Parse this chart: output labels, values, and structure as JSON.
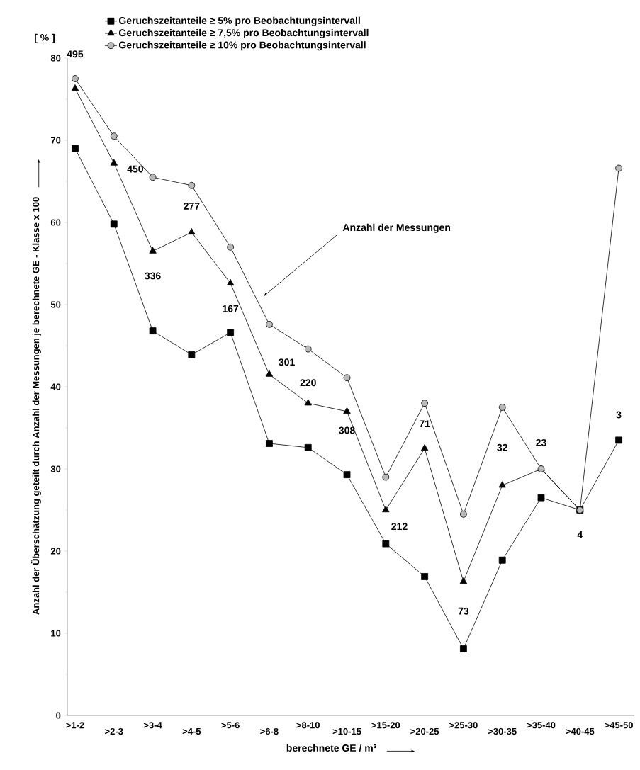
{
  "chart_data": {
    "type": "line",
    "xlabel": "berechnete GE / m³",
    "ylabel": "Anzahl der Überschätzung geteilt durch Anzahl der Messungen je berechnete GE - Klasse x 100",
    "categories": [
      ">1-2",
      ">2-3",
      ">3-4",
      ">4-5",
      ">5-6",
      ">6-8",
      ">8-10",
      ">10-15",
      ">15-20",
      ">20-25",
      ">25-30",
      ">30-35",
      ">35-40",
      ">40-45",
      ">45-50"
    ],
    "series": [
      {
        "name": "Geruchszeitanteile ≥ 5% pro Beobachtungsintervall",
        "color": "#000000",
        "marker": "square",
        "values": [
          69,
          59.8,
          46.8,
          43.9,
          46.6,
          33.1,
          32.6,
          29.3,
          20.9,
          16.9,
          8.1,
          18.9,
          26.5,
          25,
          33.5
        ]
      },
      {
        "name": "Geruchszeitanteile ≥ 7,5% pro Beobachtungsintervall",
        "color": "#000000",
        "marker": "triangle",
        "values": [
          76.3,
          67.2,
          56.5,
          58.8,
          52.6,
          41.5,
          38,
          37,
          25,
          32.5,
          16.3,
          28,
          30,
          25,
          null
        ]
      },
      {
        "name": "Geruchszeitanteile ≥ 10% pro Beobachtungsintervall",
        "color": "#000000",
        "marker": "circle",
        "values": [
          77.5,
          70.5,
          65.5,
          64.5,
          57,
          47.6,
          44.6,
          41.1,
          29,
          38,
          24.5,
          37.5,
          30,
          25,
          66.6
        ]
      }
    ],
    "ylim": [
      0,
      80
    ],
    "yticks": [
      0,
      10,
      20,
      30,
      40,
      50,
      60,
      70,
      80
    ],
    "legend": "top",
    "line_style": "solid",
    "annotations": [
      "Anzahl der Messungen",
      "[ % ]",
      "495",
      "450",
      "336",
      "277",
      "167",
      "301",
      "220",
      "308",
      "212",
      "71",
      "73",
      "32",
      "23",
      "4",
      "3"
    ]
  }
}
